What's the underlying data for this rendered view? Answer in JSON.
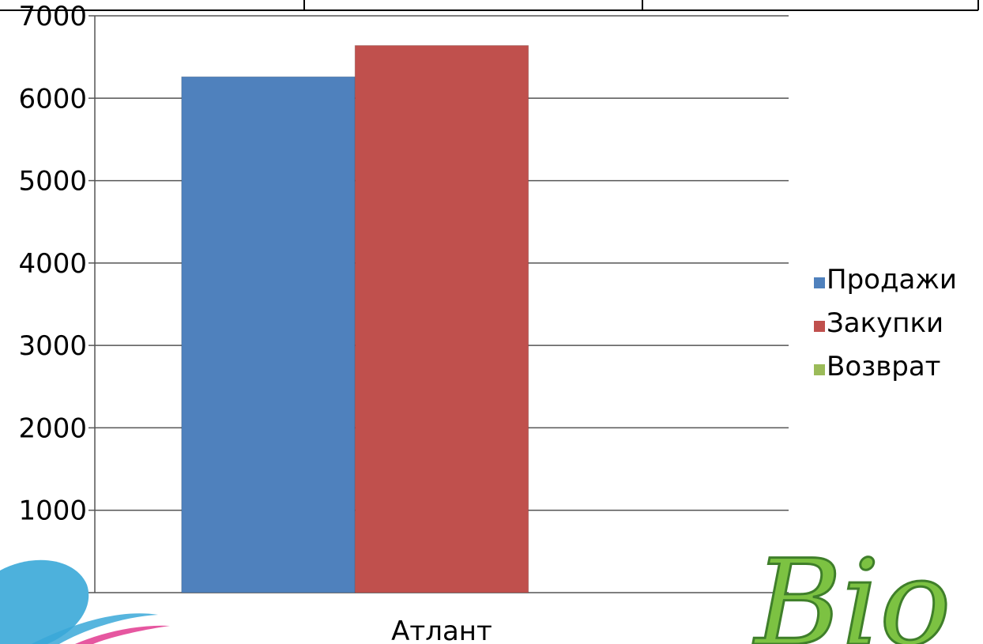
{
  "chart_data": {
    "type": "bar",
    "title": "",
    "xlabel": "",
    "ylabel": "",
    "categories": [
      "Атлант"
    ],
    "series": [
      {
        "name": "Продажи",
        "values": [
          6260
        ],
        "color": "#4f81bd"
      },
      {
        "name": "Закупки",
        "values": [
          6640
        ],
        "color": "#c0504d"
      },
      {
        "name": "Возврат",
        "values": [
          0
        ],
        "color": "#9bbb59"
      }
    ],
    "ylim": [
      0,
      7000
    ],
    "yticks": [
      "1000",
      "2000",
      "3000",
      "4000",
      "5000",
      "6000",
      "7000"
    ],
    "grid": true,
    "legend_position": "right"
  },
  "decorations": {
    "top_table_color": "#000000",
    "swoosh_icon": "blue-pink-swoosh-logo",
    "bio_logo_text": "Bio",
    "bio_logo_color": "#7cc242"
  }
}
